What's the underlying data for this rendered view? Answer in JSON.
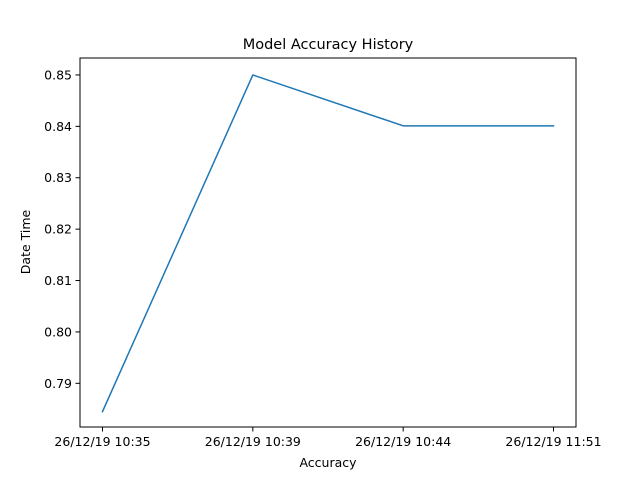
{
  "chart_data": {
    "type": "line",
    "title": "Model Accuracy History",
    "xlabel": "Accuracy",
    "ylabel": "Date Time",
    "categories": [
      "26/12/19 10:35",
      "26/12/19 10:39",
      "26/12/19 10:44",
      "26/12/19 11:51"
    ],
    "series": [
      {
        "values": [
          0.7845,
          0.85,
          0.8401,
          0.8401
        ],
        "color": "#1f77b4"
      }
    ],
    "yticks": [
      0.79,
      0.8,
      0.81,
      0.82,
      0.83,
      0.84,
      0.85
    ],
    "ytick_labels": [
      "0.79",
      "0.80",
      "0.81",
      "0.82",
      "0.83",
      "0.84",
      "0.85"
    ],
    "ylim": [
      0.7815,
      0.8533
    ],
    "grid": false,
    "legend": "none"
  }
}
